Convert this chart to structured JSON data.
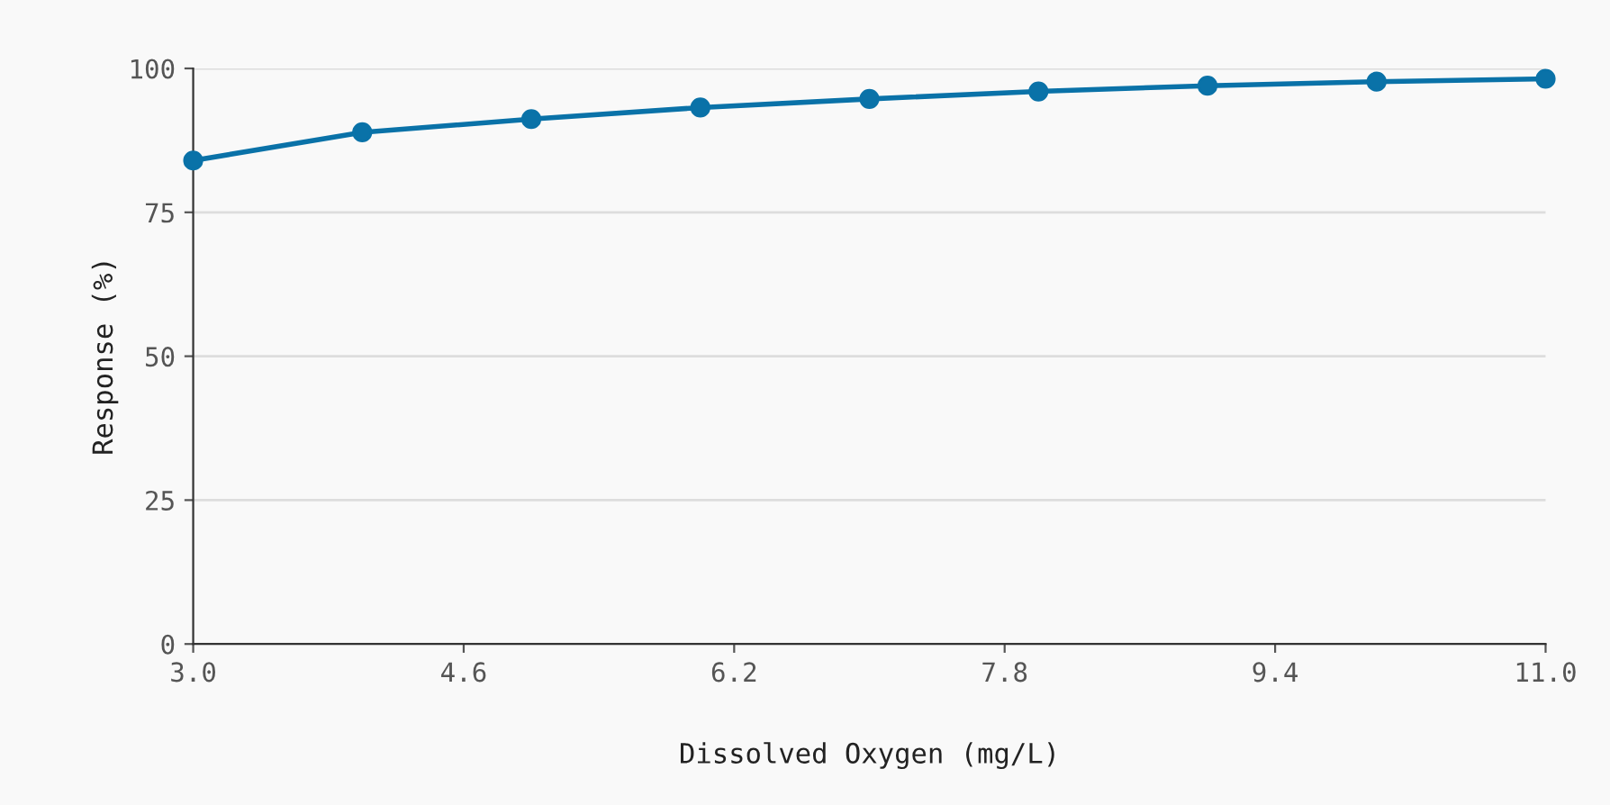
{
  "chart_data": {
    "type": "line",
    "xlabel": "Dissolved Oxygen (mg/L)",
    "ylabel": "Response (%)",
    "x": [
      3,
      4,
      5,
      6,
      7,
      8,
      9,
      10,
      11
    ],
    "series": [
      {
        "color": "#0a72a8",
        "values": [
          84,
          88.9,
          91.2,
          93.2,
          94.7,
          96,
          97,
          97.7,
          98.2
        ]
      }
    ],
    "xlim": [
      3,
      11
    ],
    "xticks": [
      {
        "value": 3,
        "label": "3.0"
      },
      4.6,
      6.2,
      7.8,
      9.4,
      {
        "value": 11,
        "label": "11.0"
      }
    ],
    "ylim": [
      0,
      100
    ],
    "yticks": [
      0,
      25,
      50,
      75,
      100
    ],
    "grid": "y",
    "marker": "circle",
    "line_style": "solid"
  }
}
